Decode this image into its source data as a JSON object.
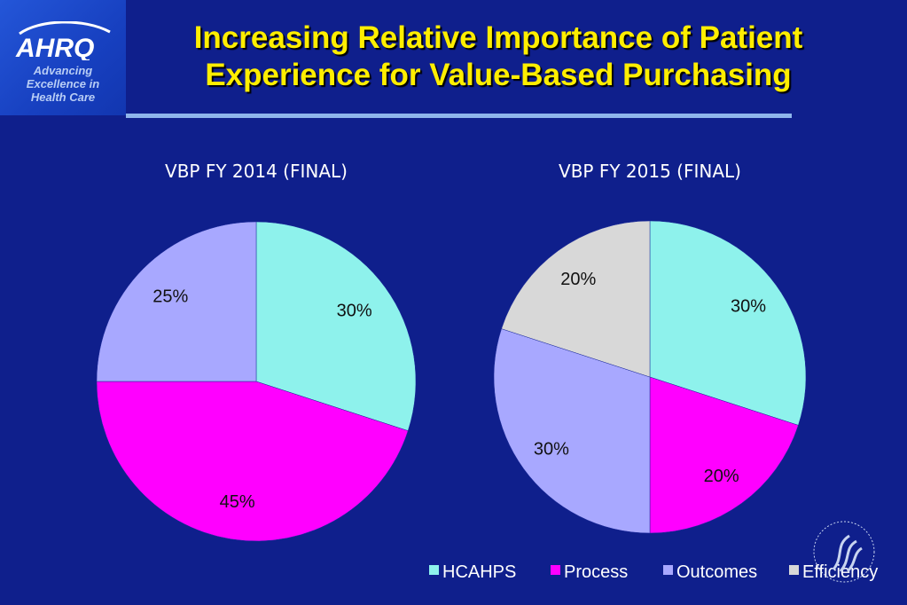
{
  "logo": {
    "wordmark": "AHRQ",
    "tagline_lines": [
      "Advancing",
      "Excellence in",
      "Health Care"
    ]
  },
  "title_lines": [
    "Increasing Relative Importance of Patient",
    "Experience for Value-Based Purchasing"
  ],
  "colors": {
    "background": "#0f1f8c",
    "title": "#ffee00",
    "HCAHPS": "#8ef2ec",
    "Process": "#ff00ff",
    "Outcomes": "#a8a8ff",
    "Efficiency": "#d8d8d8"
  },
  "chart_data": [
    {
      "type": "pie",
      "title": "VBP FY 2014 (FINAL)",
      "categories": [
        "HCAHPS",
        "Process",
        "Outcomes"
      ],
      "values": [
        30,
        45,
        25
      ],
      "labels": [
        "30%",
        "45%",
        "25%"
      ]
    },
    {
      "type": "pie",
      "title": "VBP FY 2015 (FINAL)",
      "categories": [
        "HCAHPS",
        "Process",
        "Outcomes",
        "Efficiency"
      ],
      "values": [
        30,
        20,
        30,
        20
      ],
      "labels": [
        "30%",
        "20%",
        "30%",
        "20%"
      ]
    }
  ],
  "legend": {
    "placement": "bottom",
    "items": [
      "HCAHPS",
      "Process",
      "Outcomes",
      "Efficiency"
    ]
  }
}
